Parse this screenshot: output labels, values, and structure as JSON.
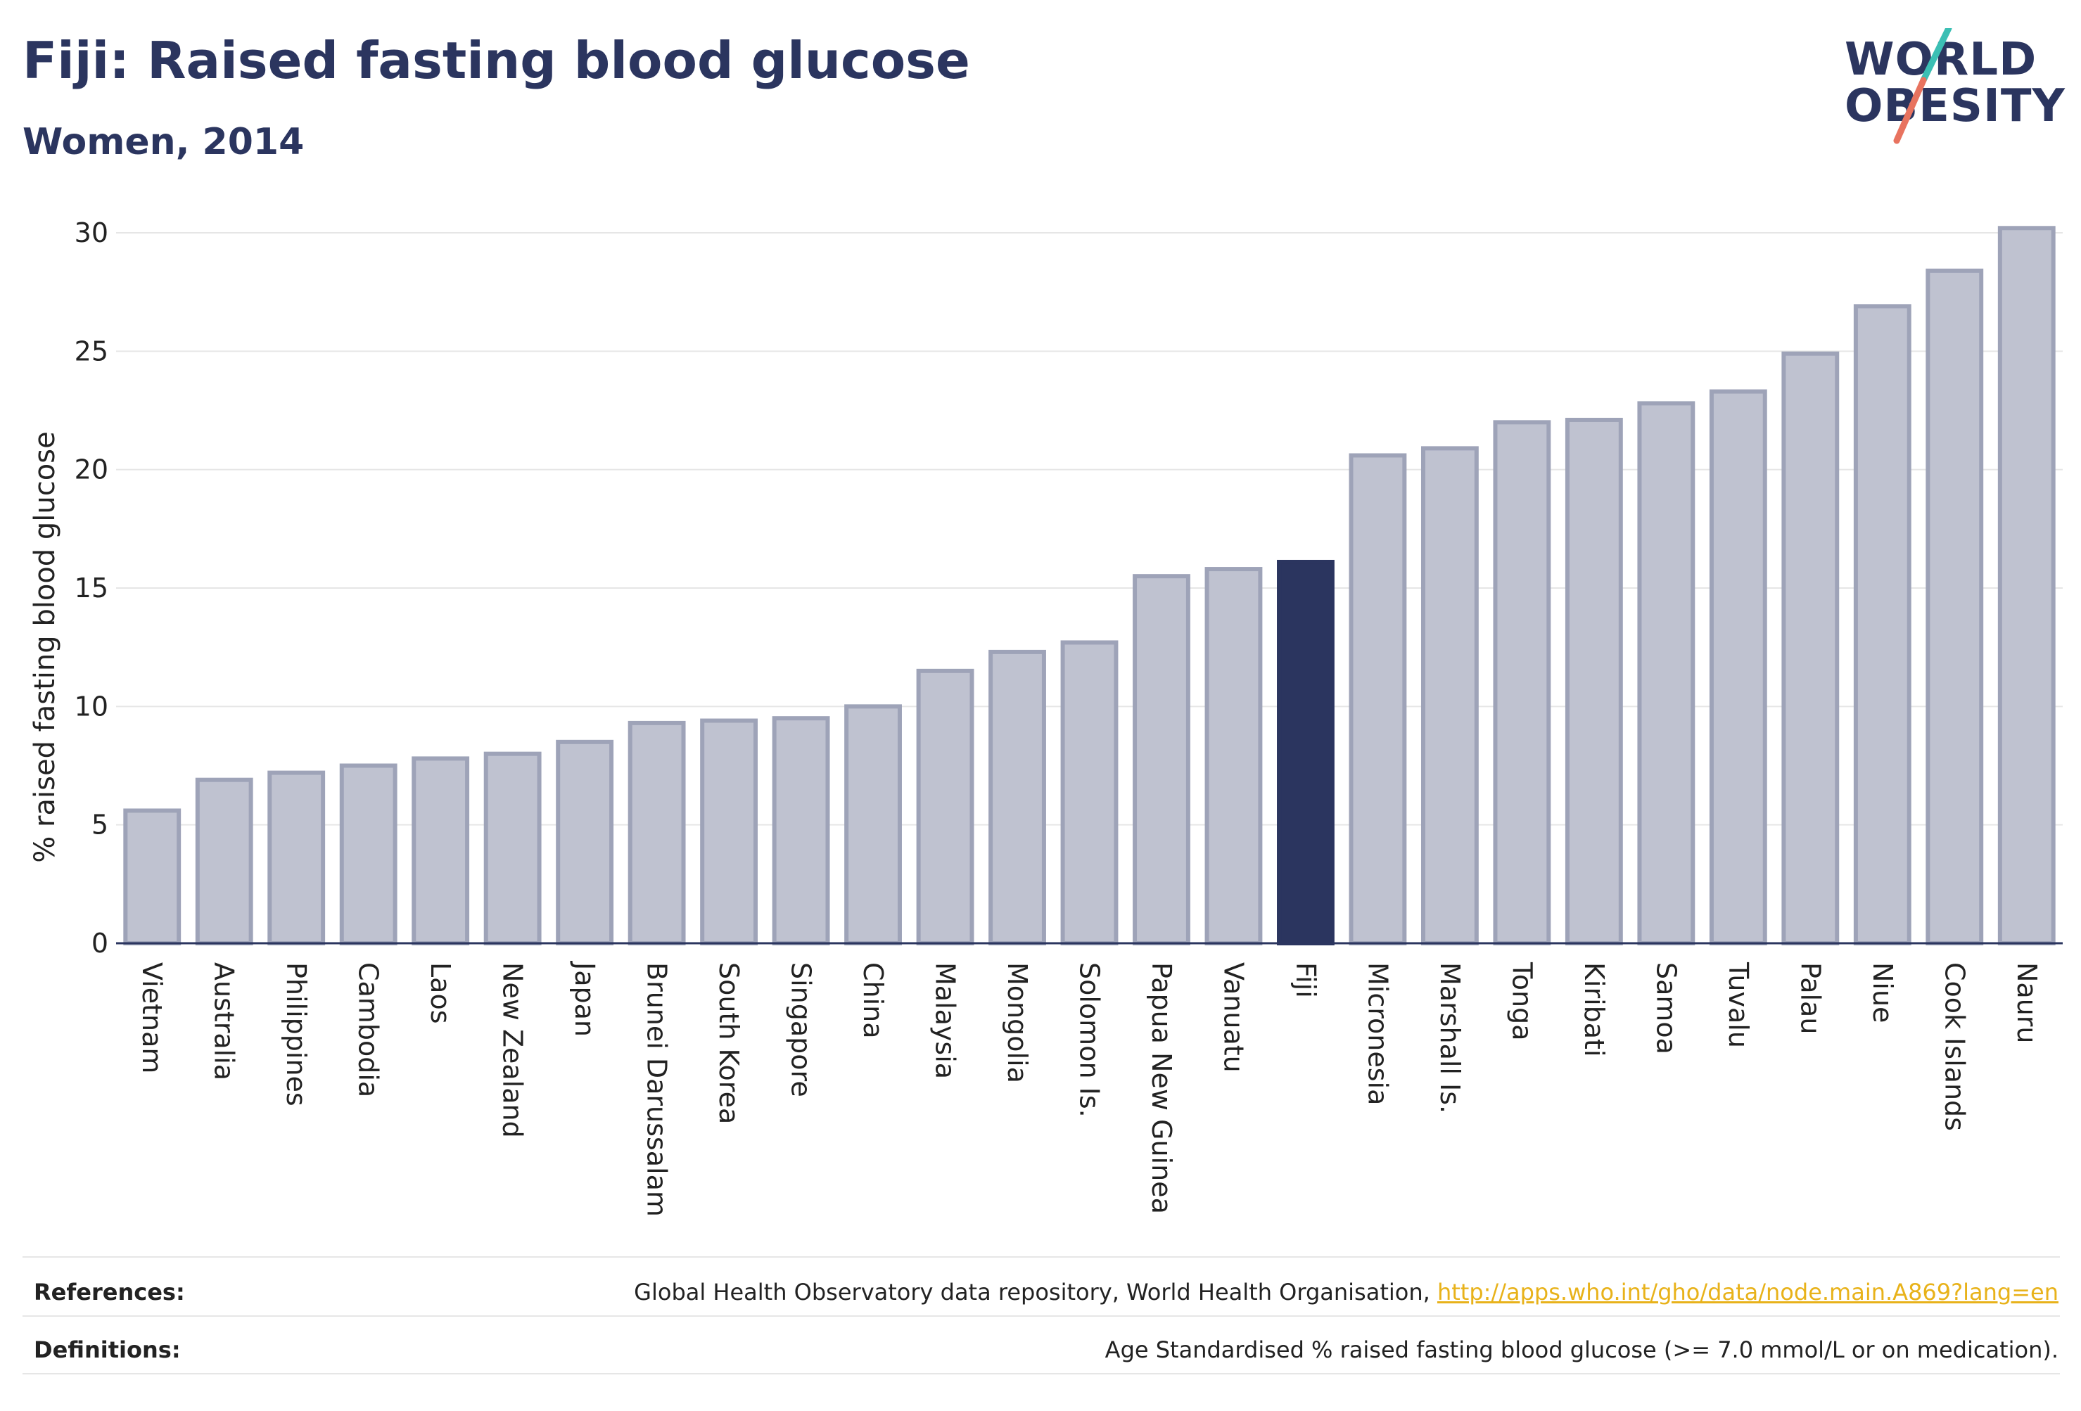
{
  "header": {
    "title": "Fiji: Raised fasting blood glucose",
    "subtitle": "Women, 2014"
  },
  "logo": {
    "line1": "WORLD",
    "line2": "OBESITY",
    "colors": {
      "text": "#2b355f",
      "slash_top": "#3bbfb4",
      "slash_bottom": "#e8735f"
    }
  },
  "colors": {
    "highlight_bar": "#2b355f",
    "bar_fill": "#bfc2d0",
    "bar_stroke": "#9ea3b8",
    "grid": "#e6e6e6",
    "axis": "#2b355f",
    "link": "#e8b21a"
  },
  "chart_data": {
    "type": "bar",
    "title": "Fiji: Raised fasting blood glucose",
    "subtitle": "Women, 2014",
    "xlabel": "",
    "ylabel": "% raised fasting blood glucose",
    "ylim": [
      0,
      30.5
    ],
    "yticks": [
      0,
      5,
      10,
      15,
      20,
      25,
      30
    ],
    "grid": true,
    "highlight": "Fiji",
    "categories": [
      "Vietnam",
      "Australia",
      "Philippines",
      "Cambodia",
      "Laos",
      "New Zealand",
      "Japan",
      "Brunei Darussalam",
      "South Korea",
      "Singapore",
      "China",
      "Malaysia",
      "Mongolia",
      "Solomon Is.",
      "Papua New Guinea",
      "Vanuatu",
      "Fiji",
      "Micronesia",
      "Marshall Is.",
      "Tonga",
      "Kiribati",
      "Samoa",
      "Tuvalu",
      "Palau",
      "Niue",
      "Cook Islands",
      "Nauru"
    ],
    "values": [
      5.6,
      6.9,
      7.2,
      7.5,
      7.8,
      8.0,
      8.5,
      9.3,
      9.4,
      9.5,
      10.0,
      11.5,
      12.3,
      12.7,
      15.5,
      15.8,
      16.1,
      20.6,
      20.9,
      22.0,
      22.1,
      22.8,
      23.3,
      24.9,
      26.9,
      28.4,
      30.2
    ]
  },
  "footer": {
    "references_label": "References:",
    "references_text": "Global Health Observatory data repository, World Health Organisation, ",
    "references_link": "http://apps.who.int/gho/data/node.main.A869?lang=en",
    "definitions_label": "Definitions:",
    "definitions_text": "Age Standardised % raised fasting blood glucose (>= 7.0 mmol/L or on medication)."
  }
}
